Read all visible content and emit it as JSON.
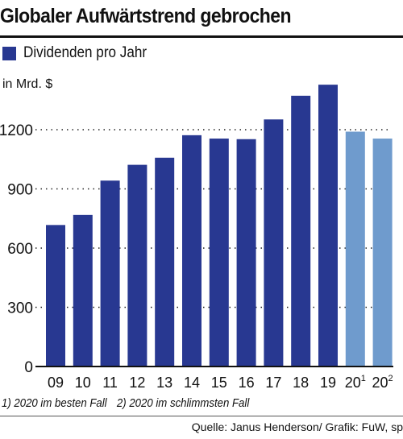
{
  "header": {
    "title": "Globaler Aufwärtstrend gebrochen"
  },
  "legend": {
    "label": "Dividenden pro Jahr"
  },
  "colors": {
    "primary": "#283891",
    "secondary": "#6f9bcd",
    "grid": "#222222"
  },
  "chart_data": {
    "type": "bar",
    "title": "Globaler Aufwärtstrend gebrochen",
    "ylabel": "in Mrd. $",
    "ylim": [
      0,
      1450
    ],
    "yticks": [
      0,
      300,
      600,
      900,
      1200
    ],
    "grid": "dotted horizontal lines at y ticks",
    "categories": [
      "09",
      "10",
      "11",
      "12",
      "13",
      "14",
      "15",
      "16",
      "17",
      "18",
      "19",
      "20",
      "20"
    ],
    "category_superscripts": [
      "",
      "",
      "",
      "",
      "",
      "",
      "",
      "",
      "",
      "",
      "",
      "1",
      "2"
    ],
    "series": [
      {
        "name": "Dividenden pro Jahr",
        "values": [
          717,
          768,
          942,
          1022,
          1058,
          1172,
          1155,
          1152,
          1252,
          1372,
          1428,
          1190,
          1155
        ],
        "highlight": [
          false,
          false,
          false,
          false,
          false,
          false,
          false,
          false,
          false,
          false,
          false,
          true,
          true
        ]
      }
    ]
  },
  "footnotes": [
    "1) 2020 im besten Fall",
    "2) 2020 im schlimmsten Fall"
  ],
  "source": "Quelle: Janus Henderson/ Grafik: FuW, sp"
}
